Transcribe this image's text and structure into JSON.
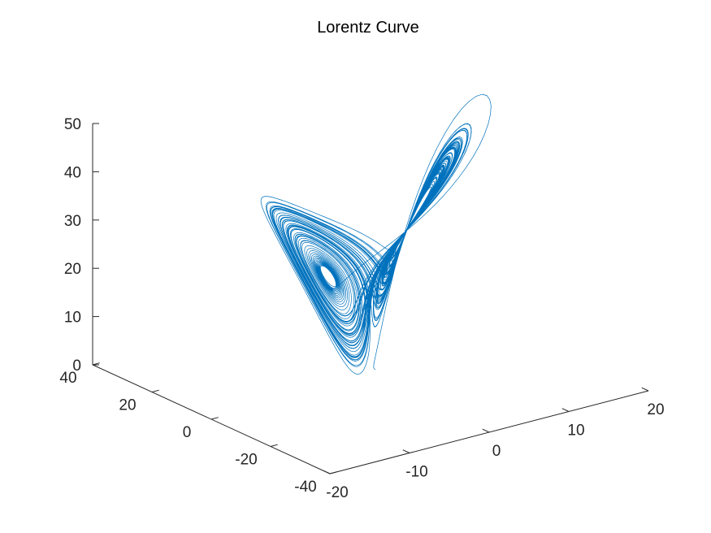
{
  "chart_data": {
    "type": "line",
    "title": "Lorentz Curve",
    "xlabel": "",
    "ylabel": "",
    "zlabel": "",
    "x_axis": {
      "ticks": [
        -20,
        -10,
        0,
        10,
        20
      ],
      "labels": [
        "-20",
        "-10",
        "0",
        "10",
        "20"
      ],
      "lim": [
        -20,
        20
      ]
    },
    "y_axis": {
      "ticks": [
        -40,
        -20,
        0,
        20,
        40
      ],
      "labels": [
        "-40",
        "-20",
        "0",
        "20",
        "40"
      ],
      "lim": [
        -40,
        40
      ]
    },
    "z_axis": {
      "ticks": [
        0,
        10,
        20,
        30,
        40,
        50
      ],
      "labels": [
        "0",
        "10",
        "20",
        "30",
        "40",
        "50"
      ],
      "lim": [
        0,
        50
      ]
    },
    "grid": false,
    "view": "3d",
    "series": [
      {
        "kind": "lorenz-attractor",
        "sigma": 10,
        "rho": 28,
        "beta": 2.6667,
        "initial": [
          1,
          1,
          1
        ],
        "t_end": 100,
        "color": "#0072BD"
      }
    ]
  }
}
